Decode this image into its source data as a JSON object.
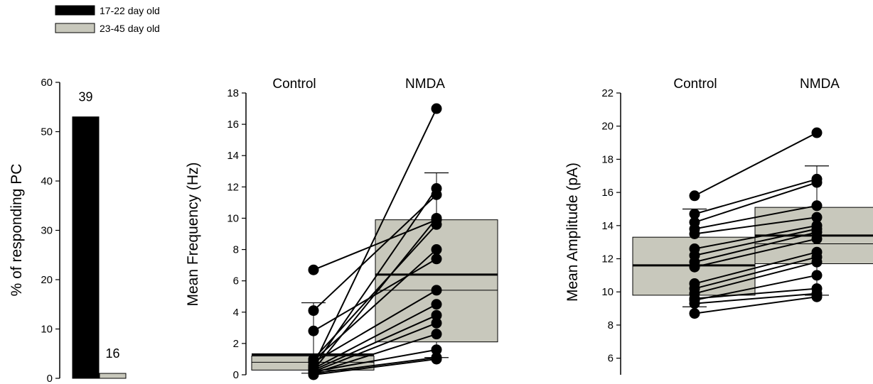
{
  "legend": [
    {
      "label": "17-22 day old",
      "color": "#000000"
    },
    {
      "label": "23-45 day old",
      "color": "#c8c8bc"
    }
  ],
  "chart_data": [
    {
      "type": "bar",
      "ylabel": "% of responding PC",
      "ylim": [
        0,
        60
      ],
      "yticks": [
        0,
        10,
        20,
        30,
        40,
        50,
        60
      ],
      "categories": [
        "17-22 day old",
        "23-45 day old"
      ],
      "values": [
        53,
        1
      ],
      "data_labels": [
        "39",
        "16"
      ],
      "colors": [
        "#000000",
        "#c8c8bc"
      ]
    },
    {
      "type": "scatter",
      "ylabel": "Mean Frequency (Hz)",
      "ylim": [
        0,
        18
      ],
      "yticks": [
        0,
        2,
        4,
        6,
        8,
        10,
        12,
        14,
        16,
        18
      ],
      "conditions": [
        "Control",
        "NMDA"
      ],
      "box_color": "#c8c8bc",
      "boxes": [
        {
          "condition": "Control",
          "q1": 0.3,
          "median": 0.8,
          "q3": 1.2,
          "mean": 1.3,
          "whisker_low": 0.1,
          "whisker_high": 4.6
        },
        {
          "condition": "NMDA",
          "q1": 2.1,
          "median": 5.4,
          "q3": 9.9,
          "mean": 6.4,
          "whisker_low": 1.1,
          "whisker_high": 12.9
        }
      ],
      "pairs": [
        [
          6.7,
          9.9
        ],
        [
          4.1,
          11.5
        ],
        [
          2.8,
          7.4
        ],
        [
          1.0,
          9.6
        ],
        [
          0.9,
          8.0
        ],
        [
          0.8,
          5.4
        ],
        [
          0.6,
          17.0
        ],
        [
          0.5,
          11.9
        ],
        [
          0.4,
          4.5
        ],
        [
          0.3,
          3.8
        ],
        [
          0.2,
          3.3
        ],
        [
          0.1,
          2.6
        ],
        [
          0.3,
          10.0
        ],
        [
          0.2,
          1.6
        ],
        [
          0.1,
          1.1
        ],
        [
          0.0,
          1.0
        ]
      ]
    },
    {
      "type": "scatter",
      "ylabel": "Mean Amplitude (pA)",
      "ylim": [
        5,
        22
      ],
      "yticks": [
        6,
        8,
        10,
        12,
        14,
        16,
        18,
        20,
        22
      ],
      "conditions": [
        "Control",
        "NMDA"
      ],
      "box_color": "#c8c8bc",
      "boxes": [
        {
          "condition": "Control",
          "q1": 9.8,
          "median": 11.6,
          "q3": 13.3,
          "mean": 11.6,
          "whisker_low": 9.1,
          "whisker_high": 15.0
        },
        {
          "condition": "NMDA",
          "q1": 11.7,
          "median": 12.9,
          "q3": 15.1,
          "mean": 13.4,
          "whisker_low": 9.8,
          "whisker_high": 17.6
        }
      ],
      "pairs": [
        [
          15.8,
          19.6
        ],
        [
          14.7,
          16.8
        ],
        [
          14.2,
          16.6
        ],
        [
          13.8,
          15.2
        ],
        [
          13.5,
          14.5
        ],
        [
          12.6,
          14.0
        ],
        [
          12.2,
          13.8
        ],
        [
          11.8,
          13.6
        ],
        [
          11.5,
          13.2
        ],
        [
          10.5,
          12.4
        ],
        [
          10.2,
          12.1
        ],
        [
          9.9,
          11.8
        ],
        [
          9.6,
          10.2
        ],
        [
          9.3,
          9.9
        ],
        [
          8.7,
          9.7
        ],
        [
          9.5,
          11.0
        ]
      ]
    }
  ]
}
